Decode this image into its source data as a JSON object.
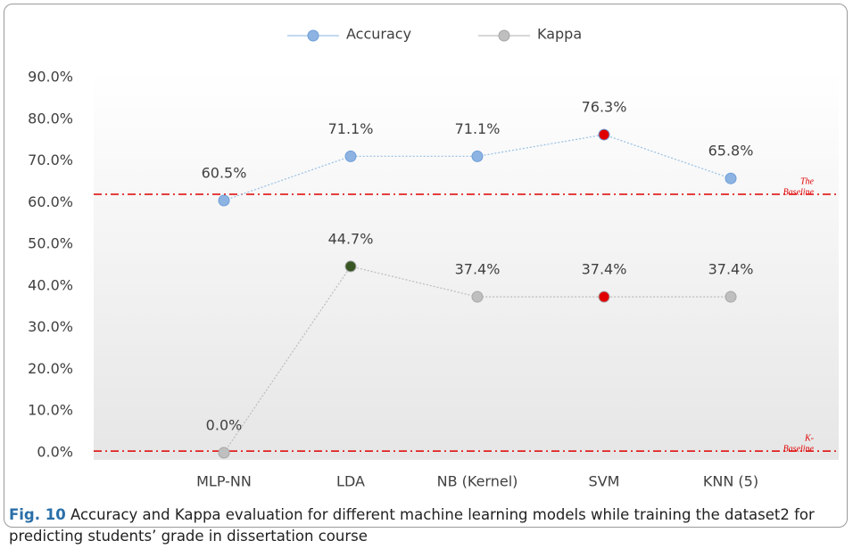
{
  "chart_data": {
    "type": "line",
    "categories": [
      "MLP-NN",
      "LDA",
      "NB (Kernel)",
      "SVM",
      "KNN (5)"
    ],
    "series": [
      {
        "name": "Accuracy",
        "color": "#9dc3e6",
        "marker_colors": [
          "#8db3e2",
          "#8db3e2",
          "#8db3e2",
          "#e00000",
          "#8db3e2"
        ],
        "values": [
          60.5,
          71.1,
          71.1,
          76.3,
          65.8
        ],
        "value_labels": [
          "60.5%",
          "71.1%",
          "71.1%",
          "76.3%",
          "65.8%"
        ]
      },
      {
        "name": "Kappa",
        "color": "#bfbfbf",
        "marker_colors": [
          "#bfbfbf",
          "#375623",
          "#bfbfbf",
          "#e00000",
          "#bfbfbf"
        ],
        "values": [
          0.0,
          44.7,
          37.4,
          37.4,
          37.4
        ],
        "value_labels": [
          "0.0%",
          "44.7%",
          "37.4%",
          "37.4%",
          "37.4%"
        ]
      }
    ],
    "ylim": [
      0,
      90
    ],
    "yticks": [
      {
        "value": 0,
        "label": "0.0%"
      },
      {
        "value": 10,
        "label": "10.0%"
      },
      {
        "value": 20,
        "label": "20.0%"
      },
      {
        "value": 30,
        "label": "30.0%"
      },
      {
        "value": 40,
        "label": "40.0%"
      },
      {
        "value": 50,
        "label": "50.0%"
      },
      {
        "value": 60,
        "label": "60.0%"
      },
      {
        "value": 70,
        "label": "70.0%"
      },
      {
        "value": 80,
        "label": "80.0%"
      },
      {
        "value": 90,
        "label": "90.0%"
      }
    ],
    "grid": false,
    "legend": "top",
    "baselines": [
      {
        "label": [
          "The",
          "Baseline"
        ],
        "value": 62,
        "color": "#e00000"
      },
      {
        "label": [
          "K-",
          "Baseline"
        ],
        "value": 0.4,
        "color": "#e00000"
      }
    ]
  },
  "caption": {
    "label": "Fig. 10",
    "text": "Accuracy and Kappa evaluation for different machine learning models while training the dataset2 for predicting students’ grade in dissertation course"
  }
}
